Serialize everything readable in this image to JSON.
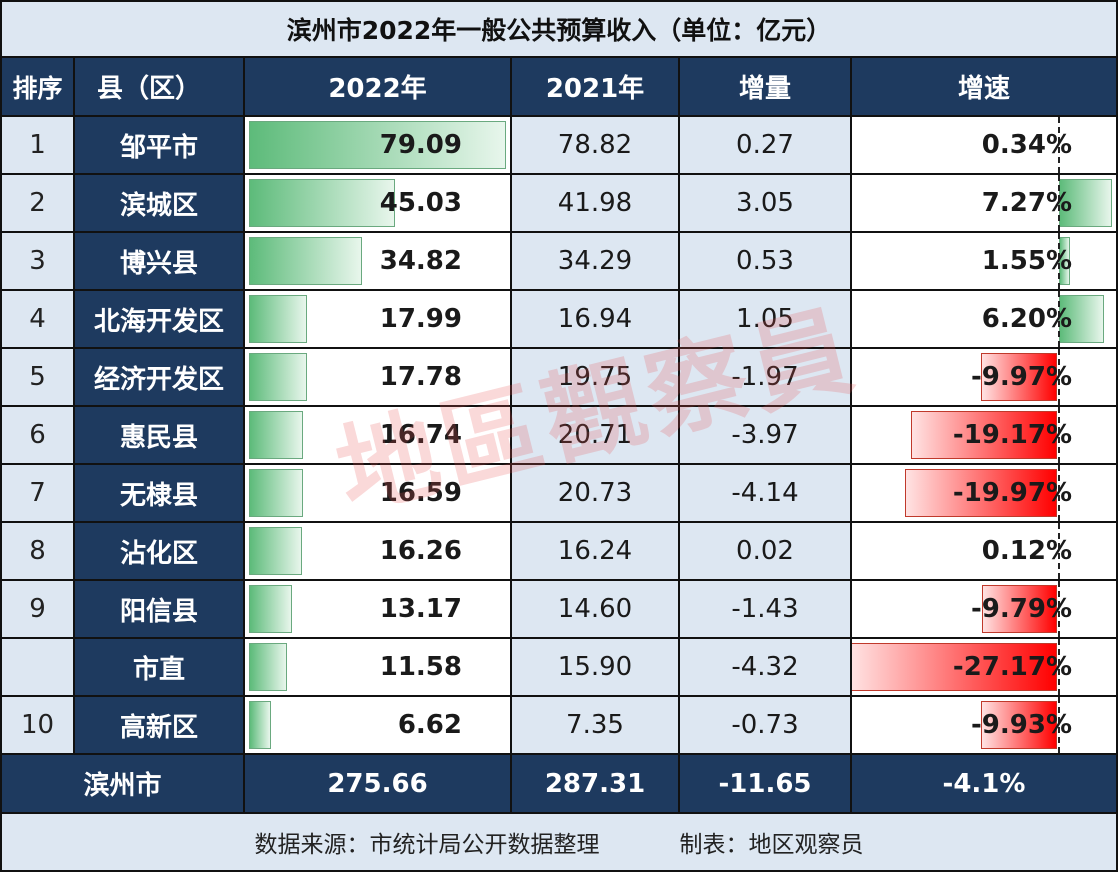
{
  "title": "滨州市2022年一般公共预算收入（单位：亿元）",
  "headers": {
    "rank": "排序",
    "name": "县（区）",
    "y2022": "2022年",
    "y2021": "2021年",
    "increase": "增量",
    "rate": "增速"
  },
  "rows": [
    {
      "rank": "1",
      "name": "邹平市",
      "y2022": "79.09",
      "y2021": "78.82",
      "increase": "0.27",
      "rate": "0.34%"
    },
    {
      "rank": "2",
      "name": "滨城区",
      "y2022": "45.03",
      "y2021": "41.98",
      "increase": "3.05",
      "rate": "7.27%"
    },
    {
      "rank": "3",
      "name": "博兴县",
      "y2022": "34.82",
      "y2021": "34.29",
      "increase": "0.53",
      "rate": "1.55%"
    },
    {
      "rank": "4",
      "name": "北海开发区",
      "y2022": "17.99",
      "y2021": "16.94",
      "increase": "1.05",
      "rate": "6.20%"
    },
    {
      "rank": "5",
      "name": "经济开发区",
      "y2022": "17.78",
      "y2021": "19.75",
      "increase": "-1.97",
      "rate": "-9.97%"
    },
    {
      "rank": "6",
      "name": "惠民县",
      "y2022": "16.74",
      "y2021": "20.71",
      "increase": "-3.97",
      "rate": "-19.17%"
    },
    {
      "rank": "7",
      "name": "无棣县",
      "y2022": "16.59",
      "y2021": "20.73",
      "increase": "-4.14",
      "rate": "-19.97%"
    },
    {
      "rank": "8",
      "name": "沾化区",
      "y2022": "16.26",
      "y2021": "16.24",
      "increase": "0.02",
      "rate": "0.12%"
    },
    {
      "rank": "9",
      "name": "阳信县",
      "y2022": "13.17",
      "y2021": "14.60",
      "increase": "-1.43",
      "rate": "-9.79%"
    },
    {
      "rank": "",
      "name": "市直",
      "y2022": "11.58",
      "y2021": "15.90",
      "increase": "-4.32",
      "rate": "-27.17%"
    },
    {
      "rank": "10",
      "name": "高新区",
      "y2022": "6.62",
      "y2021": "7.35",
      "increase": "-0.73",
      "rate": "-9.93%"
    }
  ],
  "total": {
    "name": "滨州市",
    "y2022": "275.66",
    "y2021": "287.31",
    "increase": "-11.65",
    "rate": "-4.1%"
  },
  "footer": {
    "source": "数据来源：市统计局公开数据整理",
    "author": "制表：地区观察员"
  },
  "watermark": "地區觀察員",
  "colors": {
    "navy": "#1e3a5f",
    "light_blue": "#dde7f2",
    "green_bar": "#5dbb7a",
    "red_bar": "#ff0000"
  },
  "chart_data": {
    "type": "table",
    "title": "滨州市2022年一般公共预算收入（单位：亿元）",
    "columns": [
      "排序",
      "县（区）",
      "2022年",
      "2021年",
      "增量",
      "增速"
    ],
    "categories": [
      "邹平市",
      "滨城区",
      "博兴县",
      "北海开发区",
      "经济开发区",
      "惠民县",
      "无棣县",
      "沾化区",
      "阳信县",
      "市直",
      "高新区"
    ],
    "series": [
      {
        "name": "2022年",
        "values": [
          79.09,
          45.03,
          34.82,
          17.99,
          17.78,
          16.74,
          16.59,
          16.26,
          13.17,
          11.58,
          6.62
        ]
      },
      {
        "name": "2021年",
        "values": [
          78.82,
          41.98,
          34.29,
          16.94,
          19.75,
          20.71,
          20.73,
          16.24,
          14.6,
          15.9,
          7.35
        ]
      },
      {
        "name": "增量",
        "values": [
          0.27,
          3.05,
          0.53,
          1.05,
          -1.97,
          -3.97,
          -4.14,
          0.02,
          -1.43,
          -4.32,
          -0.73
        ]
      },
      {
        "name": "增速(%)",
        "values": [
          0.34,
          7.27,
          1.55,
          6.2,
          -9.97,
          -19.17,
          -19.97,
          0.12,
          -9.79,
          -27.17,
          -9.93
        ]
      }
    ],
    "total": {
      "name": "滨州市",
      "2022年": 275.66,
      "2021年": 287.31,
      "增量": -11.65,
      "增速(%)": -4.1
    },
    "data_bars": {
      "2022年": "green gradient bars",
      "增速": "green positive / red negative bars around a dashed axis"
    }
  }
}
